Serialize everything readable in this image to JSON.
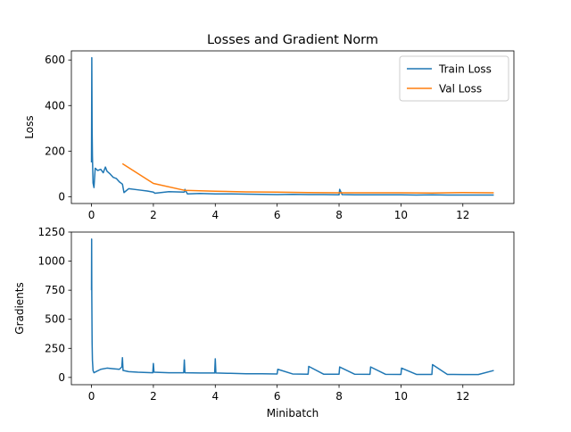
{
  "figure": {
    "title": "Losses and Gradient Norm"
  },
  "chart_data": [
    {
      "type": "line",
      "title": "Losses and Gradient Norm",
      "xlabel": "",
      "ylabel": "Loss",
      "xlim": [
        -0.65,
        13.65
      ],
      "ylim": [
        -30,
        640
      ],
      "xticks": [
        0,
        2,
        4,
        6,
        8,
        10,
        12
      ],
      "yticks": [
        0,
        200,
        400,
        600
      ],
      "legend": "top-right",
      "grid": false,
      "series": [
        {
          "name": "Train Loss",
          "color": "#1f77b4",
          "x": [
            0,
            0.01,
            0.02,
            0.03,
            0.05,
            0.08,
            0.12,
            0.2,
            0.3,
            0.38,
            0.45,
            0.5,
            0.6,
            0.7,
            0.8,
            0.9,
            1.0,
            1.05,
            1.2,
            1.5,
            1.8,
            2.0,
            2.05,
            2.5,
            3.0,
            3.02,
            3.1,
            3.5,
            4.0,
            4.5,
            5.0,
            5.5,
            6.0,
            6.5,
            7.0,
            7.5,
            8.0,
            8.02,
            8.1,
            8.5,
            9.0,
            9.5,
            10.0,
            10.5,
            11.0,
            11.5,
            12.0,
            12.5,
            13.0
          ],
          "y": [
            150,
            610,
            300,
            180,
            60,
            40,
            125,
            115,
            120,
            105,
            130,
            112,
            100,
            85,
            80,
            65,
            55,
            18,
            35,
            30,
            25,
            20,
            15,
            22,
            20,
            32,
            12,
            14,
            12,
            12,
            11,
            10,
            9,
            10,
            9,
            9,
            8,
            32,
            9,
            8,
            8,
            8,
            8,
            7,
            8,
            7,
            7,
            7,
            7
          ]
        },
        {
          "name": "Val Loss",
          "color": "#ff7f0e",
          "x": [
            1,
            2,
            3,
            4,
            5,
            6,
            7,
            8,
            9,
            10,
            11,
            12,
            13
          ],
          "y": [
            145,
            58,
            28,
            24,
            21,
            20,
            18,
            17,
            17,
            17,
            16,
            18,
            17
          ]
        }
      ]
    },
    {
      "type": "line",
      "title": "",
      "xlabel": "Minibatch",
      "ylabel": "Gradients",
      "xlim": [
        -0.65,
        13.65
      ],
      "ylim": [
        -62.5,
        1250
      ],
      "xticks": [
        0,
        2,
        4,
        6,
        8,
        10,
        12
      ],
      "yticks": [
        0,
        250,
        500,
        750,
        1000,
        1250
      ],
      "grid": false,
      "series": [
        {
          "name": "Gradients",
          "color": "#1f77b4",
          "x": [
            0,
            0.005,
            0.01,
            0.02,
            0.03,
            0.05,
            0.08,
            0.15,
            0.3,
            0.5,
            0.7,
            0.9,
            0.98,
            1.0,
            1.02,
            1.2,
            1.5,
            1.98,
            2.0,
            2.02,
            2.5,
            2.98,
            3.0,
            3.02,
            3.5,
            3.98,
            4.0,
            4.02,
            4.5,
            5.0,
            5.5,
            6.0,
            6.02,
            6.5,
            7.0,
            7.02,
            7.5,
            8.0,
            8.02,
            8.5,
            9.0,
            9.02,
            9.5,
            10.0,
            10.02,
            10.5,
            11.0,
            11.02,
            11.5,
            12.0,
            12.5,
            13.0
          ],
          "y": [
            750,
            1190,
            700,
            300,
            150,
            60,
            40,
            50,
            70,
            80,
            75,
            70,
            90,
            170,
            60,
            50,
            45,
            40,
            120,
            45,
            40,
            40,
            150,
            40,
            38,
            38,
            160,
            38,
            35,
            32,
            32,
            30,
            70,
            30,
            28,
            95,
            28,
            28,
            90,
            28,
            27,
            90,
            27,
            26,
            80,
            26,
            26,
            110,
            26,
            25,
            25,
            60
          ]
        }
      ]
    }
  ]
}
